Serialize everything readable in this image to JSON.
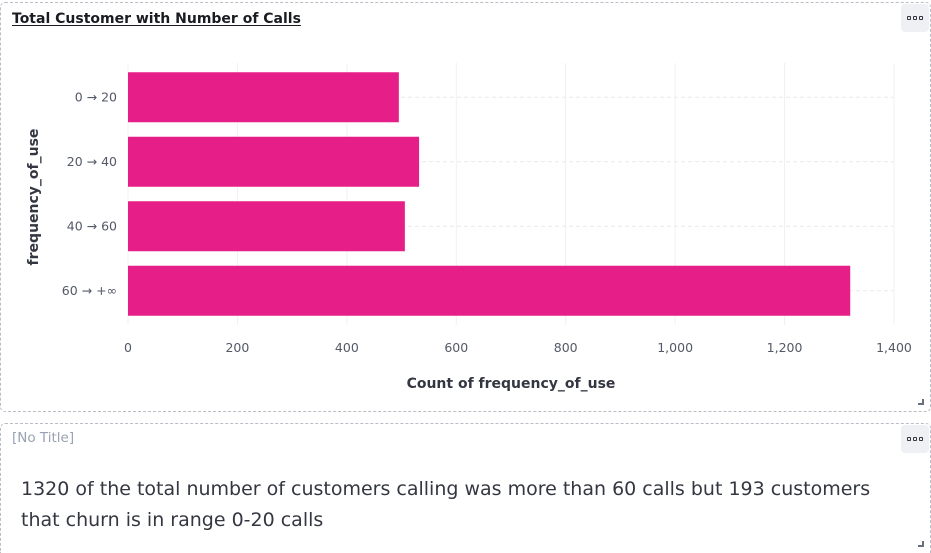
{
  "chart_panel": {
    "title": "Total Customer with Number of Calls",
    "options_icon": "options-dots-icon",
    "resize_icon": "resize-corner-icon"
  },
  "text_panel": {
    "title": "[No Title]",
    "body": "1320 of the total number of customers calling was more than 60 calls but 193 customers that churn is in range 0-20 calls",
    "options_icon": "options-dots-icon",
    "resize_icon": "resize-corner-icon"
  },
  "chart_data": {
    "type": "bar",
    "orientation": "horizontal",
    "categories": [
      "0 → 20",
      "20 → 40",
      "40 → 60",
      "60 → +∞"
    ],
    "values": [
      495,
      532,
      506,
      1320
    ],
    "xlabel": "Count of frequency_of_use",
    "ylabel": "frequency_of_use",
    "xlim": [
      0,
      1400
    ],
    "xticks": [
      0,
      200,
      400,
      600,
      800,
      1000,
      1200,
      1400
    ],
    "xtick_labels": [
      "0",
      "200",
      "400",
      "600",
      "800",
      "1,000",
      "1,200",
      "1,400"
    ],
    "grid": true,
    "bar_color": "#e61e87"
  }
}
